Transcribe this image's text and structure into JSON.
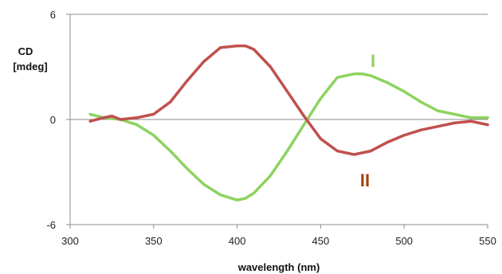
{
  "chart_data": {
    "type": "line",
    "title": "",
    "xlabel": "wavelength (nm)",
    "ylabel_lines": [
      "CD",
      "[mdeg]"
    ],
    "xlim": [
      300,
      550
    ],
    "ylim": [
      -6,
      6
    ],
    "xticks": [
      "300",
      "350",
      "400",
      "450",
      "500",
      "550"
    ],
    "yticks": [
      "-6",
      "0",
      "6"
    ],
    "grid": false,
    "series": [
      {
        "name": "I",
        "color": "#8dd35f",
        "x": [
          312,
          320,
          330,
          340,
          350,
          360,
          370,
          380,
          390,
          400,
          405,
          410,
          420,
          430,
          440,
          450,
          460,
          470,
          475,
          480,
          490,
          500,
          510,
          520,
          530,
          540,
          550
        ],
        "y": [
          0.3,
          0.1,
          0.0,
          -0.3,
          -0.9,
          -1.8,
          -2.8,
          -3.7,
          -4.3,
          -4.6,
          -4.5,
          -4.2,
          -3.2,
          -1.8,
          -0.3,
          1.2,
          2.4,
          2.6,
          2.6,
          2.5,
          2.1,
          1.6,
          1.0,
          0.5,
          0.3,
          0.1,
          0.1
        ]
      },
      {
        "name": "II",
        "color": "#c0504d",
        "x": [
          312,
          320,
          325,
          330,
          340,
          350,
          360,
          370,
          380,
          390,
          400,
          405,
          410,
          420,
          430,
          440,
          450,
          460,
          470,
          480,
          490,
          500,
          510,
          520,
          530,
          540,
          550
        ],
        "y": [
          -0.1,
          0.1,
          0.2,
          0.0,
          0.1,
          0.3,
          1.0,
          2.2,
          3.3,
          4.1,
          4.2,
          4.2,
          4.0,
          3.0,
          1.6,
          0.2,
          -1.1,
          -1.8,
          -2.0,
          -1.8,
          -1.3,
          -0.9,
          -0.6,
          -0.4,
          -0.2,
          -0.1,
          -0.3
        ]
      }
    ]
  }
}
